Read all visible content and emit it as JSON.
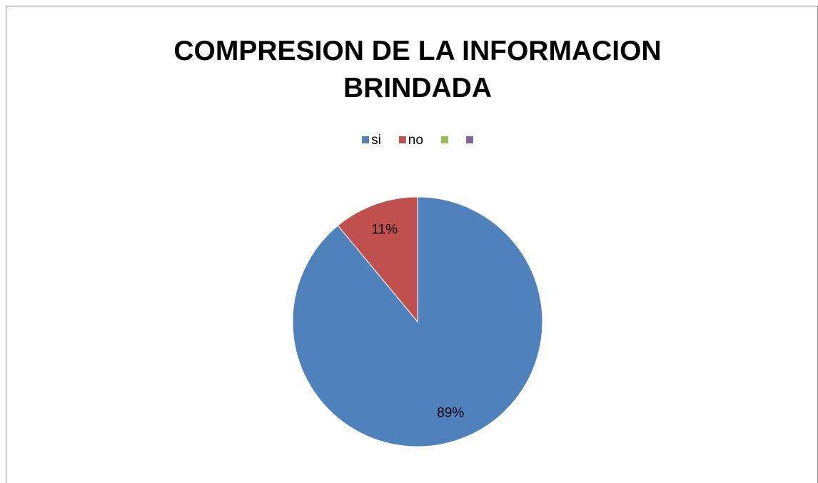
{
  "chart_data": {
    "type": "pie",
    "title": "COMPRESION DE LA INFORMACION BRINDADA",
    "categories": [
      "si",
      "no",
      null,
      null
    ],
    "values": [
      89,
      11,
      0,
      0
    ],
    "value_labels": [
      "89%",
      "11%",
      null,
      null
    ],
    "colors": [
      "#4f81bd",
      "#c0504d",
      "#9bbb59",
      "#8064a2"
    ],
    "legend": "top"
  }
}
